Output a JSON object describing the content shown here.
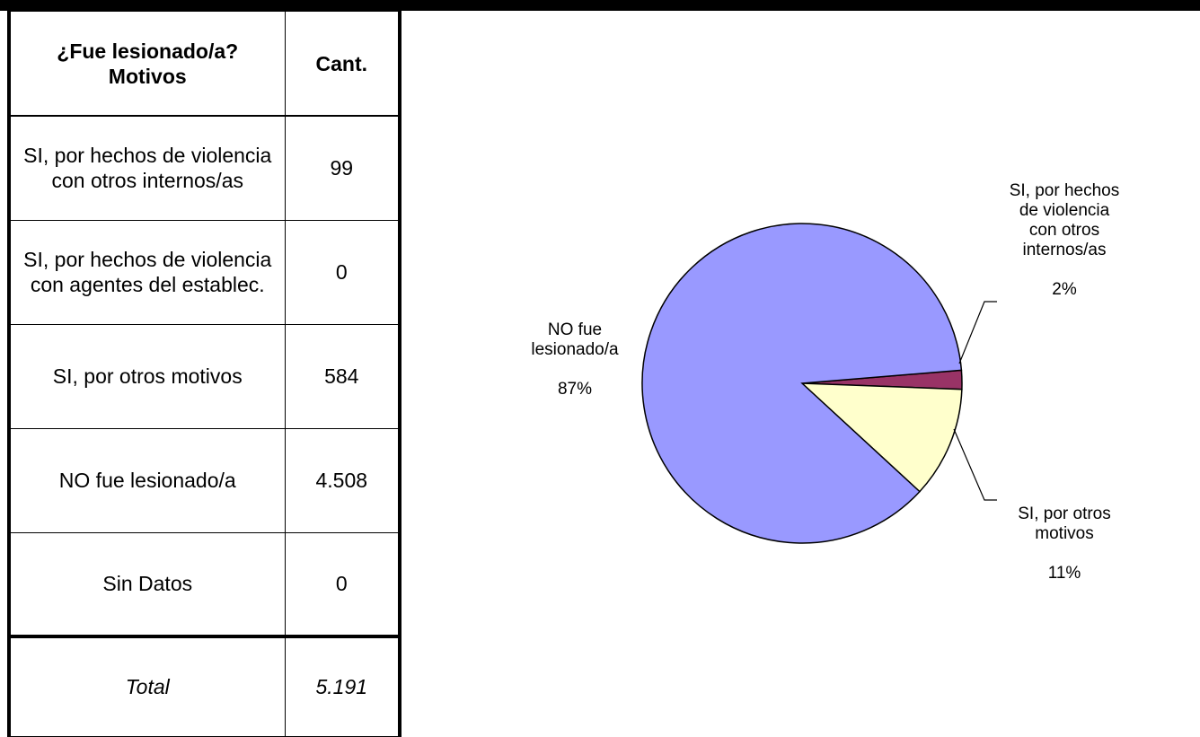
{
  "table": {
    "header": {
      "col1": "¿Fue lesionado/a?\nMotivos",
      "col2": "Cant."
    },
    "rows": [
      {
        "label": "SI, por hechos de violencia con otros internos/as",
        "value": "99"
      },
      {
        "label": "SI, por hechos de violencia con agentes del establec.",
        "value": "0"
      },
      {
        "label": "SI, por otros motivos",
        "value": "584"
      },
      {
        "label": "NO fue lesionado/a",
        "value": "4.508"
      },
      {
        "label": "Sin Datos",
        "value": "0"
      }
    ],
    "total": {
      "label": "Total",
      "value": "5.191"
    }
  },
  "chart_data": {
    "type": "pie",
    "title": "",
    "slices": [
      {
        "label": "SI, por hechos de violencia con otros internos/as",
        "value": 99,
        "percent_label": "2%",
        "color": "#993366"
      },
      {
        "label": "SI, por otros motivos",
        "value": 584,
        "percent_label": "11%",
        "color": "#ffffcc"
      },
      {
        "label": "NO fue lesionado/a",
        "value": 4508,
        "percent_label": "87%",
        "color": "#9999ff"
      }
    ]
  }
}
